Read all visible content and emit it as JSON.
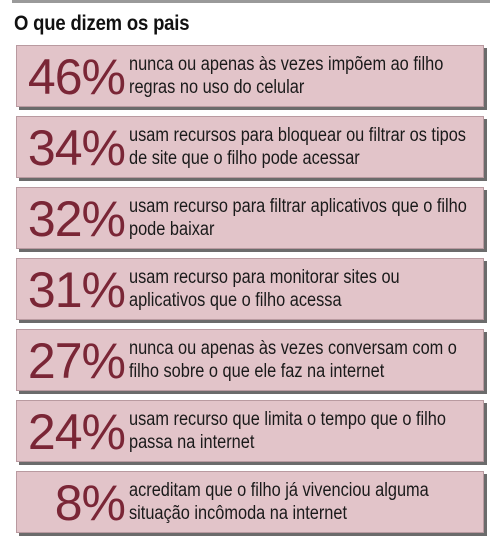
{
  "title": "O que dizem os pais",
  "items": [
    {
      "percent": "46%",
      "text": "nunca ou apenas às vezes impõem ao filho regras no uso do celular"
    },
    {
      "percent": "34%",
      "text": "usam recursos para bloquear ou filtrar os tipos de site que o filho pode acessar"
    },
    {
      "percent": "32%",
      "text": "usam recurso para filtrar aplicativos que o filho pode baixar"
    },
    {
      "percent": "31%",
      "text": "usam recurso para monitorar sites ou aplicativos que o filho acessa"
    },
    {
      "percent": "27%",
      "text": "nunca ou apenas às vezes conversam com o filho sobre o que ele faz na internet"
    },
    {
      "percent": "24%",
      "text": "usam recurso que limita o tempo que o filho passa na internet"
    },
    {
      "percent": "8%",
      "text": "acreditam que o filho já vivenciou alguma situação incômoda na internet"
    }
  ],
  "colors": {
    "card_background": "#e2c4c9",
    "percent_text": "#7a2636",
    "shadow": "#6b6b6b"
  }
}
